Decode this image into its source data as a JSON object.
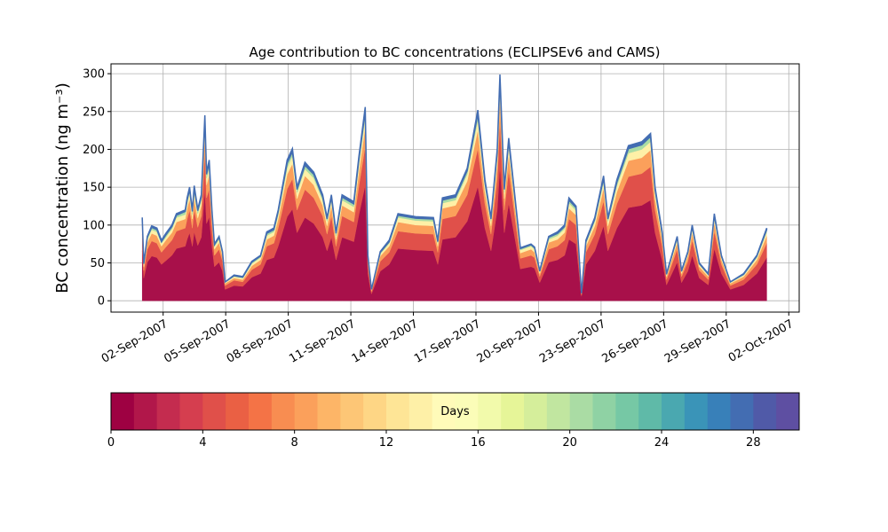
{
  "chart_data": {
    "type": "stacked_area",
    "title": "Age contribution to BC concentrations (ECLIPSEv6 and CAMS)",
    "ylabel": "BC concentration (ng m⁻³)",
    "x": [
      1.0,
      1.07,
      1.24,
      1.45,
      1.7,
      1.92,
      2.13,
      2.42,
      2.64,
      3.06,
      3.15,
      3.27,
      3.4,
      3.49,
      3.66,
      3.83,
      4.0,
      4.08,
      4.21,
      4.34,
      4.46,
      4.68,
      4.85,
      4.97,
      5.4,
      5.82,
      6.25,
      6.67,
      6.97,
      7.31,
      7.52,
      7.95,
      8.2,
      8.42,
      8.8,
      9.22,
      9.65,
      9.86,
      10.07,
      10.29,
      10.58,
      11.14,
      11.39,
      11.69,
      11.82,
      11.99,
      12.41,
      12.84,
      13.26,
      14.11,
      14.96,
      15.17,
      15.39,
      16.02,
      16.58,
      17.09,
      17.43,
      17.72,
      18.02,
      18.15,
      18.36,
      18.57,
      19.13,
      19.64,
      19.81,
      20.06,
      20.49,
      20.91,
      21.25,
      21.46,
      21.8,
      22.06,
      22.27,
      22.7,
      23.12,
      23.33,
      23.76,
      24.31,
      24.95,
      25.37,
      25.59,
      25.93,
      26.14,
      26.65,
      26.86,
      27.16,
      27.37,
      27.71,
      28.14,
      28.43,
      28.77,
      29.2,
      29.84,
      30.47,
      30.94
    ],
    "series": [
      {
        "color": "#a8104a",
        "values": [
          66,
          30,
          51,
          59,
          57,
          48,
          53,
          60,
          69,
          72,
          81,
          90,
          72,
          91,
          73,
          84,
          147,
          102,
          111,
          72,
          45,
          51,
          39,
          15,
          20,
          19,
          31,
          36,
          54,
          57,
          72,
          111,
          121,
          90,
          110,
          102,
          84,
          66,
          84,
          54,
          84,
          78,
          114,
          153,
          36,
          9,
          39,
          48,
          69,
          67,
          66,
          48,
          81,
          84,
          105,
          151,
          96,
          66,
          120,
          179,
          90,
          129,
          42,
          45,
          43,
          24,
          51,
          54,
          60,
          81,
          75,
          6,
          48,
          66,
          99,
          66,
          96,
          123,
          126,
          133,
          90,
          54,
          21,
          51,
          24,
          39,
          60,
          30,
          21,
          69,
          36,
          15,
          21,
          36,
          57
        ]
      },
      {
        "color": "#e0504a",
        "values": [
          22,
          10,
          17,
          20,
          19,
          16,
          18,
          20,
          23,
          24,
          27,
          30,
          24,
          30,
          24,
          28,
          49,
          34,
          37,
          24,
          15,
          17,
          13,
          5,
          7,
          6,
          10,
          12,
          18,
          19,
          24,
          37,
          40,
          30,
          37,
          34,
          28,
          22,
          28,
          18,
          28,
          26,
          38,
          51,
          12,
          3,
          13,
          16,
          23,
          22,
          22,
          16,
          27,
          28,
          35,
          50,
          32,
          22,
          40,
          60,
          30,
          43,
          14,
          15,
          14,
          8,
          17,
          18,
          20,
          27,
          25,
          2,
          16,
          22,
          33,
          22,
          32,
          41,
          42,
          44,
          30,
          18,
          7,
          17,
          8,
          13,
          20,
          10,
          7,
          23,
          12,
          5,
          7,
          12,
          19
        ]
      },
      {
        "color": "#fba05b",
        "values": [
          11,
          5,
          9,
          10,
          10,
          8,
          9,
          10,
          12,
          12,
          14,
          15,
          12,
          15,
          12,
          14,
          25,
          17,
          19,
          12,
          8,
          9,
          7,
          3,
          3,
          3,
          5,
          6,
          9,
          10,
          12,
          19,
          20,
          15,
          18,
          17,
          14,
          11,
          14,
          9,
          14,
          13,
          19,
          26,
          6,
          2,
          7,
          8,
          12,
          11,
          11,
          8,
          14,
          14,
          18,
          25,
          16,
          11,
          20,
          30,
          15,
          22,
          7,
          8,
          7,
          4,
          9,
          9,
          10,
          14,
          13,
          1,
          8,
          11,
          17,
          11,
          16,
          21,
          21,
          22,
          15,
          9,
          4,
          9,
          4,
          7,
          10,
          5,
          4,
          12,
          6,
          3,
          4,
          6,
          10
        ]
      },
      {
        "color": "#fef0a7",
        "values": [
          6,
          3,
          4,
          5,
          5,
          4,
          4,
          5,
          6,
          6,
          7,
          8,
          6,
          8,
          6,
          7,
          12,
          9,
          9,
          6,
          4,
          4,
          3,
          1,
          2,
          2,
          3,
          3,
          5,
          5,
          6,
          9,
          10,
          8,
          9,
          9,
          7,
          6,
          7,
          5,
          7,
          7,
          10,
          13,
          3,
          1,
          3,
          4,
          6,
          6,
          6,
          4,
          7,
          7,
          9,
          13,
          8,
          6,
          10,
          15,
          8,
          11,
          4,
          4,
          4,
          2,
          4,
          5,
          5,
          7,
          6,
          1,
          4,
          6,
          8,
          6,
          8,
          10,
          11,
          11,
          8,
          5,
          2,
          4,
          2,
          3,
          5,
          3,
          2,
          6,
          3,
          1,
          2,
          3,
          5
        ]
      },
      {
        "color": "#aadca4",
        "values": [
          3,
          1,
          3,
          3,
          3,
          2,
          3,
          3,
          3,
          4,
          4,
          4,
          4,
          5,
          4,
          4,
          7,
          5,
          6,
          4,
          2,
          3,
          2,
          1,
          1,
          1,
          2,
          2,
          3,
          3,
          4,
          6,
          6,
          4,
          5,
          5,
          4,
          3,
          4,
          3,
          4,
          4,
          6,
          8,
          2,
          0,
          2,
          2,
          3,
          3,
          3,
          2,
          4,
          4,
          5,
          8,
          5,
          3,
          6,
          9,
          4,
          6,
          2,
          2,
          2,
          1,
          3,
          3,
          3,
          4,
          4,
          0,
          2,
          3,
          5,
          3,
          5,
          6,
          6,
          7,
          4,
          3,
          1,
          3,
          1,
          2,
          3,
          1,
          1,
          3,
          2,
          1,
          1,
          2,
          3
        ]
      },
      {
        "color": "#436db2",
        "values": [
          2,
          1,
          1,
          2,
          2,
          2,
          2,
          2,
          2,
          2,
          3,
          3,
          2,
          3,
          2,
          3,
          5,
          3,
          4,
          2,
          1,
          1,
          1,
          0,
          1,
          1,
          1,
          1,
          2,
          2,
          2,
          4,
          4,
          3,
          4,
          3,
          3,
          2,
          3,
          2,
          3,
          3,
          4,
          5,
          1,
          0,
          1,
          2,
          2,
          2,
          2,
          2,
          3,
          3,
          3,
          5,
          3,
          2,
          4,
          6,
          3,
          4,
          1,
          1,
          1,
          1,
          1,
          2,
          2,
          3,
          2,
          0,
          2,
          2,
          3,
          2,
          3,
          4,
          4,
          4,
          3,
          2,
          1,
          1,
          1,
          1,
          2,
          1,
          1,
          2,
          1,
          0,
          1,
          1,
          2
        ]
      }
    ],
    "xlim": [
      -0.5,
      32.5
    ],
    "xticks": [
      {
        "value": 2,
        "label": "02-Sep-2007"
      },
      {
        "value": 5,
        "label": "05-Sep-2007"
      },
      {
        "value": 8,
        "label": "08-Sep-2007"
      },
      {
        "value": 11,
        "label": "11-Sep-2007"
      },
      {
        "value": 14,
        "label": "14-Sep-2007"
      },
      {
        "value": 17,
        "label": "17-Sep-2007"
      },
      {
        "value": 20,
        "label": "20-Sep-2007"
      },
      {
        "value": 23,
        "label": "23-Sep-2007"
      },
      {
        "value": 26,
        "label": "26-Sep-2007"
      },
      {
        "value": 29,
        "label": "29-Sep-2007"
      },
      {
        "value": 32,
        "label": "02-Oct-2007"
      }
    ],
    "ylim": [
      -15,
      313
    ],
    "yticks": [
      0,
      50,
      100,
      150,
      200,
      250,
      300
    ],
    "grid": true,
    "colorbar": {
      "label": "Days",
      "lim": [
        0,
        30
      ],
      "ticks": [
        0,
        4,
        8,
        12,
        16,
        20,
        24,
        28
      ],
      "colors": [
        "#9e0142",
        "#b1174a",
        "#c42c4f",
        "#d53e4f",
        "#e0504a",
        "#ea6044",
        "#f47346",
        "#f88d51",
        "#fba05b",
        "#fdb567",
        "#fdc676",
        "#fed685",
        "#fee596",
        "#fef0a7",
        "#fffbb9",
        "#fbfdb8",
        "#f2faab",
        "#e6f598",
        "#d5ee9b",
        "#c1e6a0",
        "#aadca4",
        "#8fd2a4",
        "#76c8a5",
        "#5fbaa8",
        "#4aa8b0",
        "#3a94b8",
        "#3880b9",
        "#436db2",
        "#505aa8",
        "#5e4fa2"
      ]
    }
  }
}
